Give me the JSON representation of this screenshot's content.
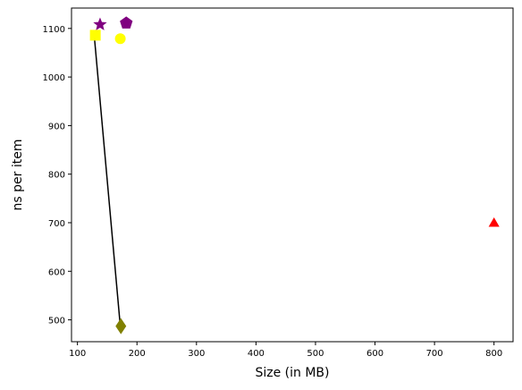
{
  "chart_data": {
    "type": "scatter",
    "title": "",
    "xlabel": "Size (in MB)",
    "ylabel": "ns per item",
    "xlim": [
      90,
      832
    ],
    "ylim": [
      455,
      1142
    ],
    "xticks": [
      100,
      200,
      300,
      400,
      500,
      600,
      700,
      800
    ],
    "yticks": [
      500,
      600,
      700,
      800,
      900,
      1000,
      1100
    ],
    "grid": false,
    "legend": "none",
    "points": [
      {
        "x": 138,
        "y": 1108,
        "marker": "star",
        "color": "#800080"
      },
      {
        "x": 182,
        "y": 1111,
        "marker": "pentagon",
        "color": "#800080"
      },
      {
        "x": 130,
        "y": 1086,
        "marker": "square",
        "color": "#ffff00"
      },
      {
        "x": 172,
        "y": 1079,
        "marker": "circle",
        "color": "#ffff00"
      },
      {
        "x": 173,
        "y": 487,
        "marker": "diamond",
        "color": "#808000"
      },
      {
        "x": 800,
        "y": 700,
        "marker": "triangle",
        "color": "#ff0000"
      }
    ],
    "lines": [
      {
        "color": "#000000",
        "points": [
          {
            "x": 128,
            "y": 1088
          },
          {
            "x": 172,
            "y": 487
          }
        ]
      }
    ]
  }
}
